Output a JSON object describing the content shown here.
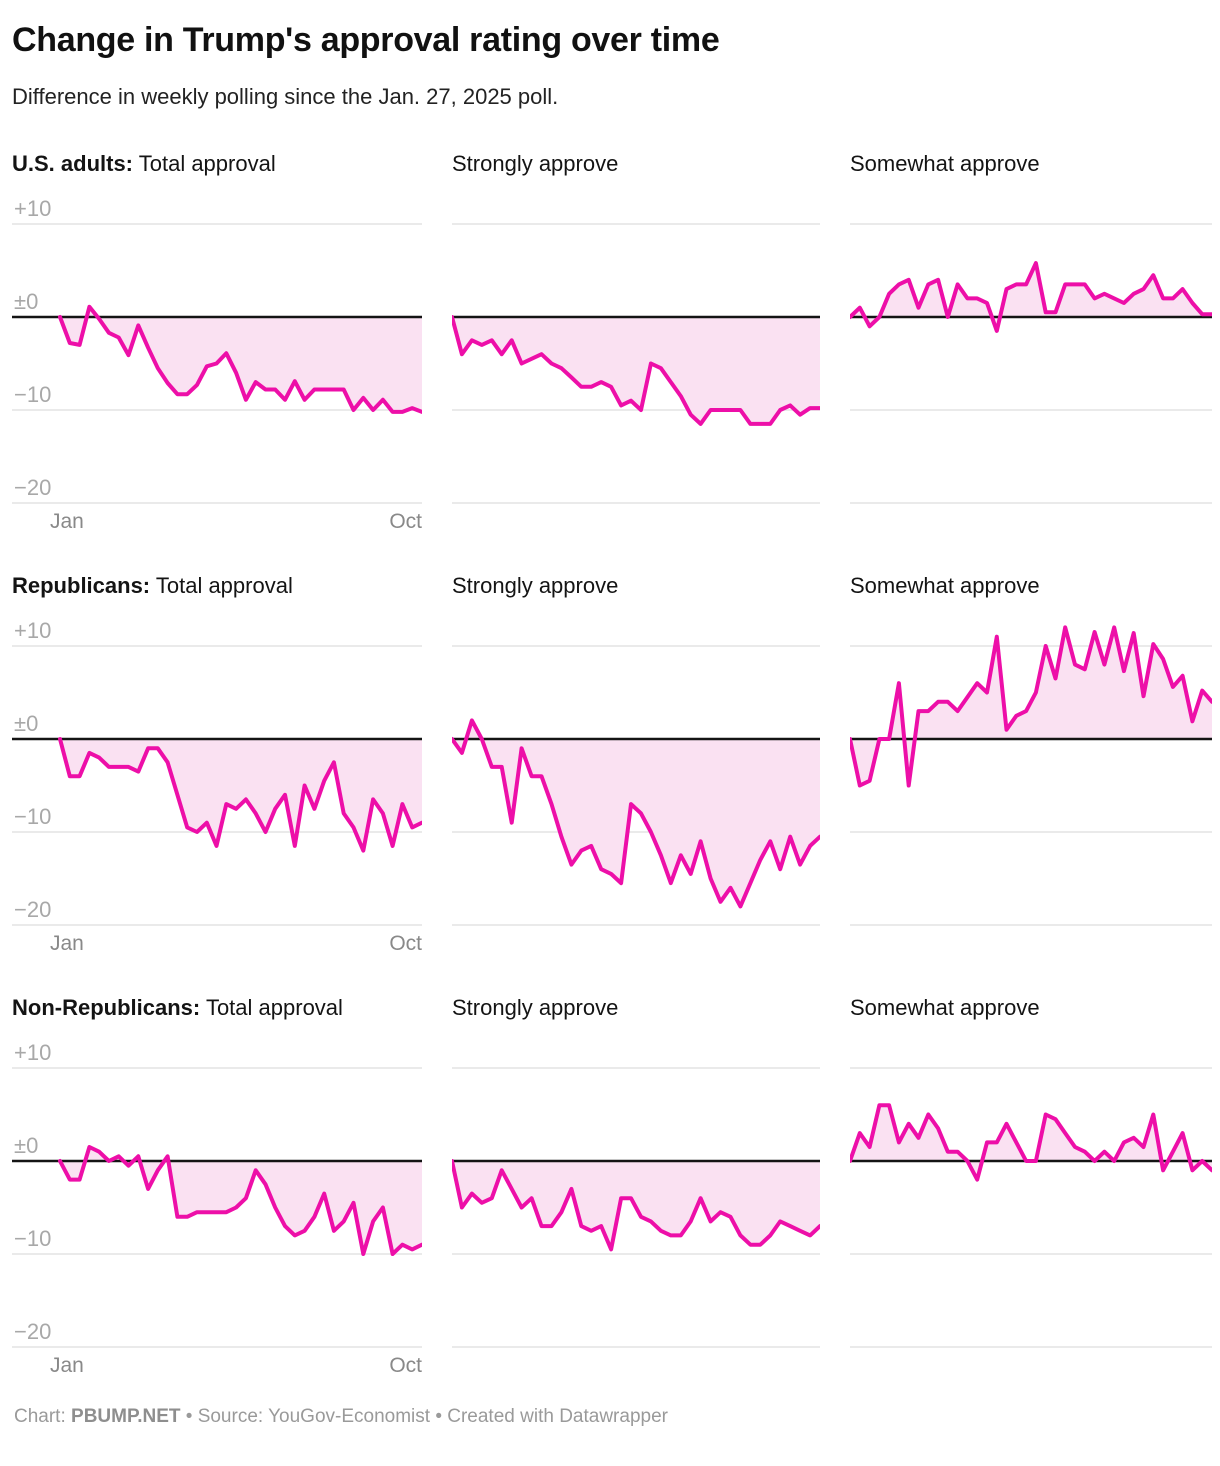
{
  "header": {
    "title": "Change in Trump's approval rating over time",
    "subtitle": "Difference in weekly polling since the Jan. 27, 2025 poll."
  },
  "axis": {
    "y_ticks": [
      "+10",
      "±0",
      "−10",
      "−20"
    ],
    "y_tick_values": [
      10,
      0,
      -10,
      -20
    ],
    "x_ticks": [
      "Jan",
      "Oct"
    ]
  },
  "colors": {
    "line": "#ed0fa8",
    "fill": "#fae1f2",
    "zero": "#141414",
    "grid": "#e4e4e4",
    "tick": "#a8a8a8"
  },
  "footer": {
    "chart_label": "Chart: ",
    "chart_name": "PBUMP.NET",
    "meta": " • Source: YouGov-Economist • Created with Datawrapper"
  },
  "chart_data": [
    {
      "type": "line",
      "title_bold": "U.S. adults:",
      "title_rest": " Total approval",
      "x_range": [
        "Jan",
        "Oct"
      ],
      "ylim": [
        -20,
        10
      ],
      "values": [
        0,
        -2.8,
        -3,
        1.1,
        -0.2,
        -1.7,
        -2.2,
        -4.1,
        -0.9,
        -3.3,
        -5.5,
        -7.1,
        -8.3,
        -8.3,
        -7.3,
        -5.3,
        -5,
        -3.9,
        -6,
        -8.9,
        -7,
        -7.8,
        -7.8,
        -8.9,
        -6.9,
        -8.9,
        -7.8,
        -7.8,
        -7.8,
        -7.8,
        -10,
        -8.7,
        -10,
        -8.9,
        -10.2,
        -10.2,
        -9.8,
        -10.2
      ]
    },
    {
      "type": "line",
      "title_bold": "",
      "title_rest": "Strongly approve",
      "x_range": [
        "Jan",
        "Oct"
      ],
      "ylim": [
        -20,
        10
      ],
      "values": [
        0,
        -4,
        -2.5,
        -3,
        -2.5,
        -4,
        -2.5,
        -5,
        -4.5,
        -4,
        -5,
        -5.5,
        -6.5,
        -7.5,
        -7.5,
        -7,
        -7.5,
        -9.5,
        -9,
        -10,
        -5,
        -5.5,
        -7,
        -8.5,
        -10.5,
        -11.5,
        -10,
        -10,
        -10,
        -10,
        -11.5,
        -11.5,
        -11.5,
        -10,
        -9.5,
        -10.5,
        -9.8,
        -9.8
      ]
    },
    {
      "type": "line",
      "title_bold": "",
      "title_rest": "Somewhat approve",
      "x_range": [
        "Jan",
        "Oct"
      ],
      "ylim": [
        -20,
        10
      ],
      "values": [
        0,
        1,
        -1,
        0,
        2.5,
        3.5,
        4,
        1,
        3.5,
        4,
        0,
        3.5,
        2,
        2,
        1.5,
        -1.5,
        3,
        3.5,
        3.5,
        5.8,
        0.5,
        0.5,
        3.5,
        3.5,
        3.5,
        2,
        2.5,
        2,
        1.5,
        2.5,
        3,
        4.5,
        2,
        2,
        3,
        1.5,
        0.3,
        0.3
      ]
    },
    {
      "type": "line",
      "title_bold": "Republicans:",
      "title_rest": " Total approval",
      "x_range": [
        "Jan",
        "Oct"
      ],
      "ylim": [
        -20,
        10
      ],
      "values": [
        0,
        -4,
        -4,
        -1.5,
        -2,
        -3,
        -3,
        -3,
        -3.5,
        -1,
        -1,
        -2.5,
        -6,
        -9.5,
        -10,
        -9,
        -11.5,
        -7,
        -7.5,
        -6.5,
        -8,
        -10,
        -7.5,
        -6,
        -11.5,
        -5,
        -7.5,
        -4.5,
        -2.5,
        -8,
        -9.5,
        -12,
        -6.5,
        -8,
        -11.5,
        -7,
        -9.5,
        -9
      ]
    },
    {
      "type": "line",
      "title_bold": "",
      "title_rest": "Strongly approve",
      "x_range": [
        "Jan",
        "Oct"
      ],
      "ylim": [
        -20,
        10
      ],
      "values": [
        0,
        -1.5,
        2,
        0,
        -3,
        -3,
        -9,
        -1,
        -4,
        -4,
        -7,
        -10.5,
        -13.5,
        -12,
        -11.5,
        -14,
        -14.5,
        -15.5,
        -7,
        -8,
        -10,
        -12.5,
        -15.5,
        -12.5,
        -14.5,
        -11,
        -15,
        -17.5,
        -16,
        -18,
        -15.5,
        -13,
        -11,
        -14,
        -10.5,
        -13.5,
        -11.5,
        -10.5
      ]
    },
    {
      "type": "line",
      "title_bold": "",
      "title_rest": "Somewhat approve",
      "x_range": [
        "Jan",
        "Oct"
      ],
      "ylim": [
        -20,
        10
      ],
      "values": [
        0,
        -5,
        -4.5,
        0,
        0,
        6,
        -5,
        3,
        3,
        4,
        4,
        3,
        4.5,
        6,
        5,
        11,
        1,
        2.5,
        3,
        5,
        10,
        6.5,
        12,
        8,
        7.5,
        11.5,
        8,
        12,
        7.3,
        11.4,
        4.6,
        10.2,
        8.6,
        5.6,
        6.8,
        1.9,
        5.2,
        4
      ]
    },
    {
      "type": "line",
      "title_bold": "Non-Republicans:",
      "title_rest": " Total approval",
      "x_range": [
        "Jan",
        "Oct"
      ],
      "ylim": [
        -20,
        10
      ],
      "values": [
        0,
        -2,
        -2,
        1.5,
        1,
        0,
        0.5,
        -0.5,
        0.5,
        -3,
        -1,
        0.5,
        -6,
        -6,
        -5.5,
        -5.5,
        -5.5,
        -5.5,
        -5,
        -4,
        -1,
        -2.5,
        -5,
        -7,
        -8,
        -7.5,
        -6,
        -3.5,
        -7.5,
        -6.5,
        -4.5,
        -10,
        -6.5,
        -5,
        -10,
        -9,
        -9.5,
        -9
      ]
    },
    {
      "type": "line",
      "title_bold": "",
      "title_rest": "Strongly approve",
      "x_range": [
        "Jan",
        "Oct"
      ],
      "ylim": [
        -20,
        10
      ],
      "values": [
        0,
        -5,
        -3.5,
        -4.5,
        -4,
        -1,
        -3,
        -5,
        -4,
        -7,
        -7,
        -5.5,
        -3,
        -7,
        -7.5,
        -7,
        -9.5,
        -4,
        -4,
        -6,
        -6.5,
        -7.5,
        -8,
        -8,
        -6.5,
        -4,
        -6.5,
        -5.5,
        -6,
        -8,
        -9,
        -9,
        -8,
        -6.5,
        -7,
        -7.5,
        -8,
        -7
      ]
    },
    {
      "type": "line",
      "title_bold": "",
      "title_rest": "Somewhat approve",
      "x_range": [
        "Jan",
        "Oct"
      ],
      "ylim": [
        -20,
        10
      ],
      "values": [
        0,
        3,
        1.5,
        6,
        6,
        2,
        4,
        2.5,
        5,
        3.5,
        1,
        1,
        0,
        -2,
        2,
        2,
        4,
        2,
        0,
        0,
        5,
        4.5,
        3,
        1.5,
        1,
        0,
        1,
        0,
        2,
        2.5,
        1.5,
        5,
        -1,
        1,
        3,
        -1,
        0,
        -1
      ]
    }
  ]
}
